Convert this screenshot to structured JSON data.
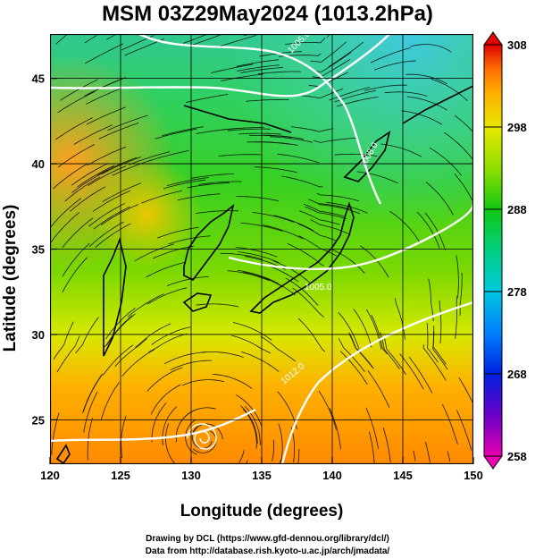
{
  "title": "MSM 03Z29May2024 (1013.2hPa)",
  "x_axis": {
    "label": "Longitude (degrees)",
    "ticks": [
      120,
      125,
      130,
      135,
      140,
      145,
      150
    ],
    "range": [
      120,
      150
    ]
  },
  "y_axis": {
    "label": "Latitude  (degrees)",
    "ticks": [
      25,
      30,
      35,
      40,
      45
    ],
    "range": [
      22.4,
      47.6
    ]
  },
  "colorbar": {
    "ticks": [
      308,
      298,
      288,
      278,
      268,
      258
    ],
    "range": [
      258,
      308
    ],
    "colors": {
      "258": "#e800b0",
      "263": "#6a00c8",
      "268": "#0020e0",
      "273": "#0080ff",
      "278": "#00c8e0",
      "283": "#00d080",
      "288": "#10c810",
      "293": "#90e000",
      "298": "#e8e800",
      "302": "#ffb000",
      "305": "#ff7000",
      "308": "#e00000"
    }
  },
  "contour_labels": [
    "1005.0",
    "1008.0",
    "1005.0",
    "1012.0"
  ],
  "credits": {
    "line1": "Drawing by DCL (https://www.gfd-dennou.org/library/dcl/)",
    "line2": "Data from http://database.rish.kyoto-u.ac.jp/arch/jmadata/"
  }
}
